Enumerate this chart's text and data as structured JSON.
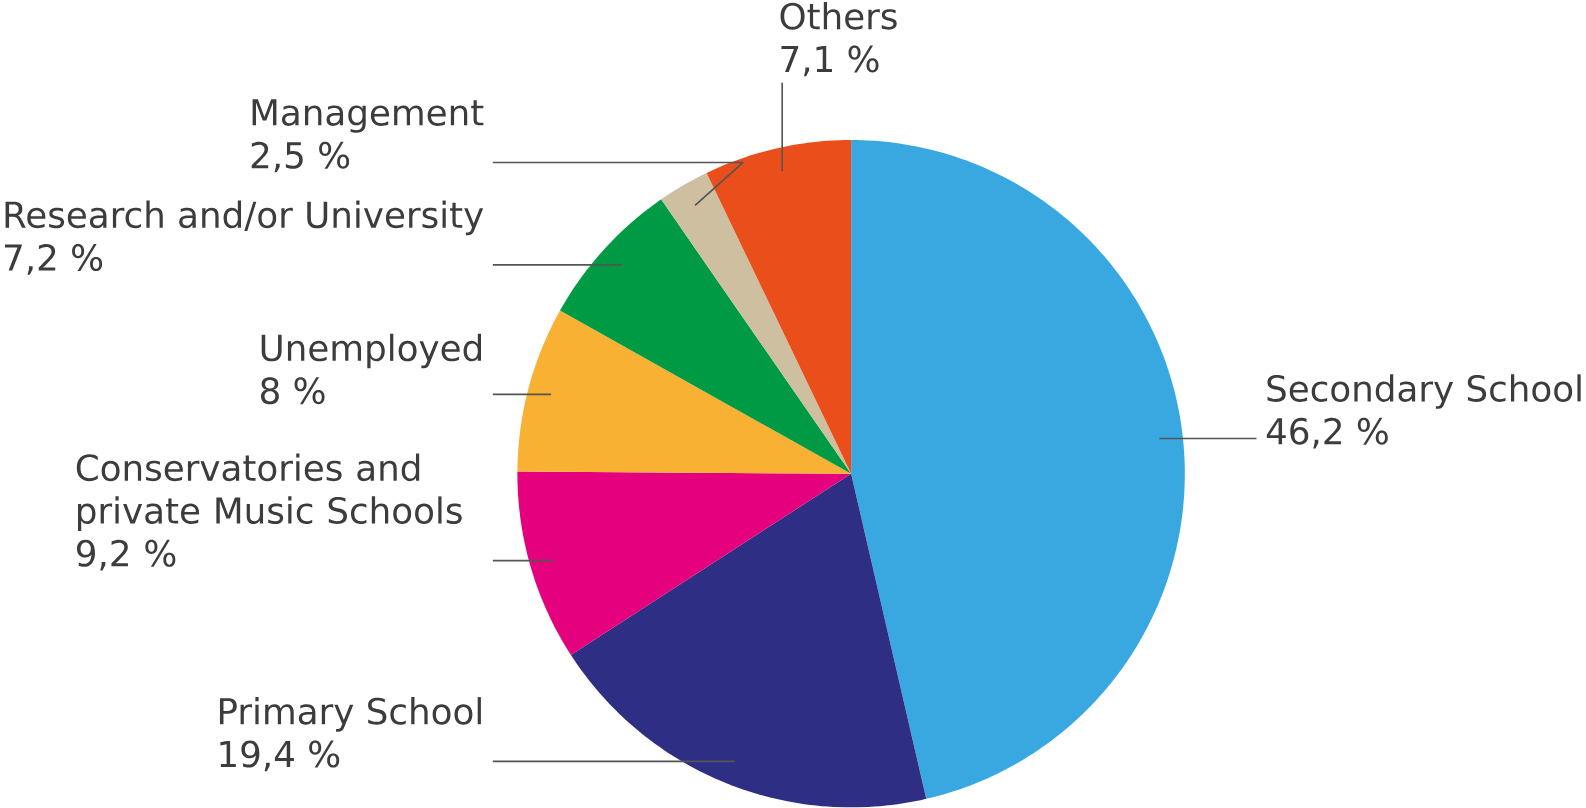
{
  "chart_data": {
    "type": "pie",
    "categories": [
      "Secondary School",
      "Primary School",
      "Conservatories and private Music Schools",
      "Unemployed",
      "Research and/or University",
      "Management",
      "Others"
    ],
    "values": [
      46.2,
      19.4,
      9.2,
      8,
      7.2,
      2.5,
      7.1
    ],
    "value_labels": [
      "46,2 %",
      "19,4 %",
      "9,2 %",
      "8 %",
      "7,2 %",
      "2,5 %",
      "7,1 %"
    ],
    "colors": [
      "#3aa8e0",
      "#2e2f84",
      "#e5007e",
      "#f8b133",
      "#009a44",
      "#cdbf9f",
      "#e94e1b"
    ]
  }
}
